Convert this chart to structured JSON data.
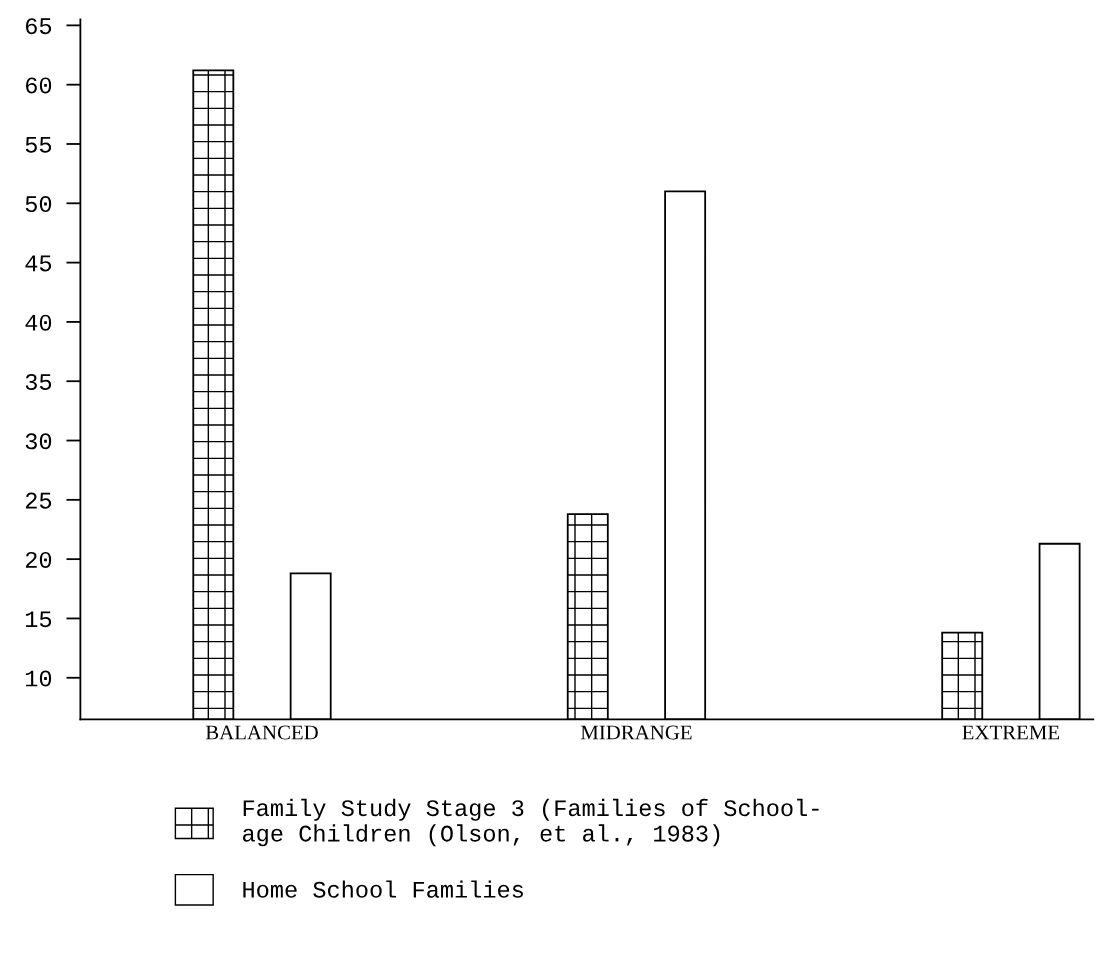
{
  "chart_data": {
    "type": "bar",
    "categories": [
      "BALANCED",
      "MIDRANGE",
      "EXTREME"
    ],
    "series": [
      {
        "name": "Family Study Stage 3 (Families of School-\nage Children (Olson, et al., 1983)",
        "color": "#000000",
        "values": [
          61.2,
          23.8,
          13.8
        ]
      },
      {
        "name": "Home School Families",
        "color": "#ffffff",
        "values": [
          18.8,
          51.0,
          21.3
        ]
      }
    ],
    "ylim": [
      6.5,
      65.5
    ],
    "yticks": [
      10,
      15,
      20,
      25,
      30,
      35,
      40,
      45,
      50,
      55,
      60,
      65
    ],
    "grid": false,
    "legend": "bottom"
  }
}
